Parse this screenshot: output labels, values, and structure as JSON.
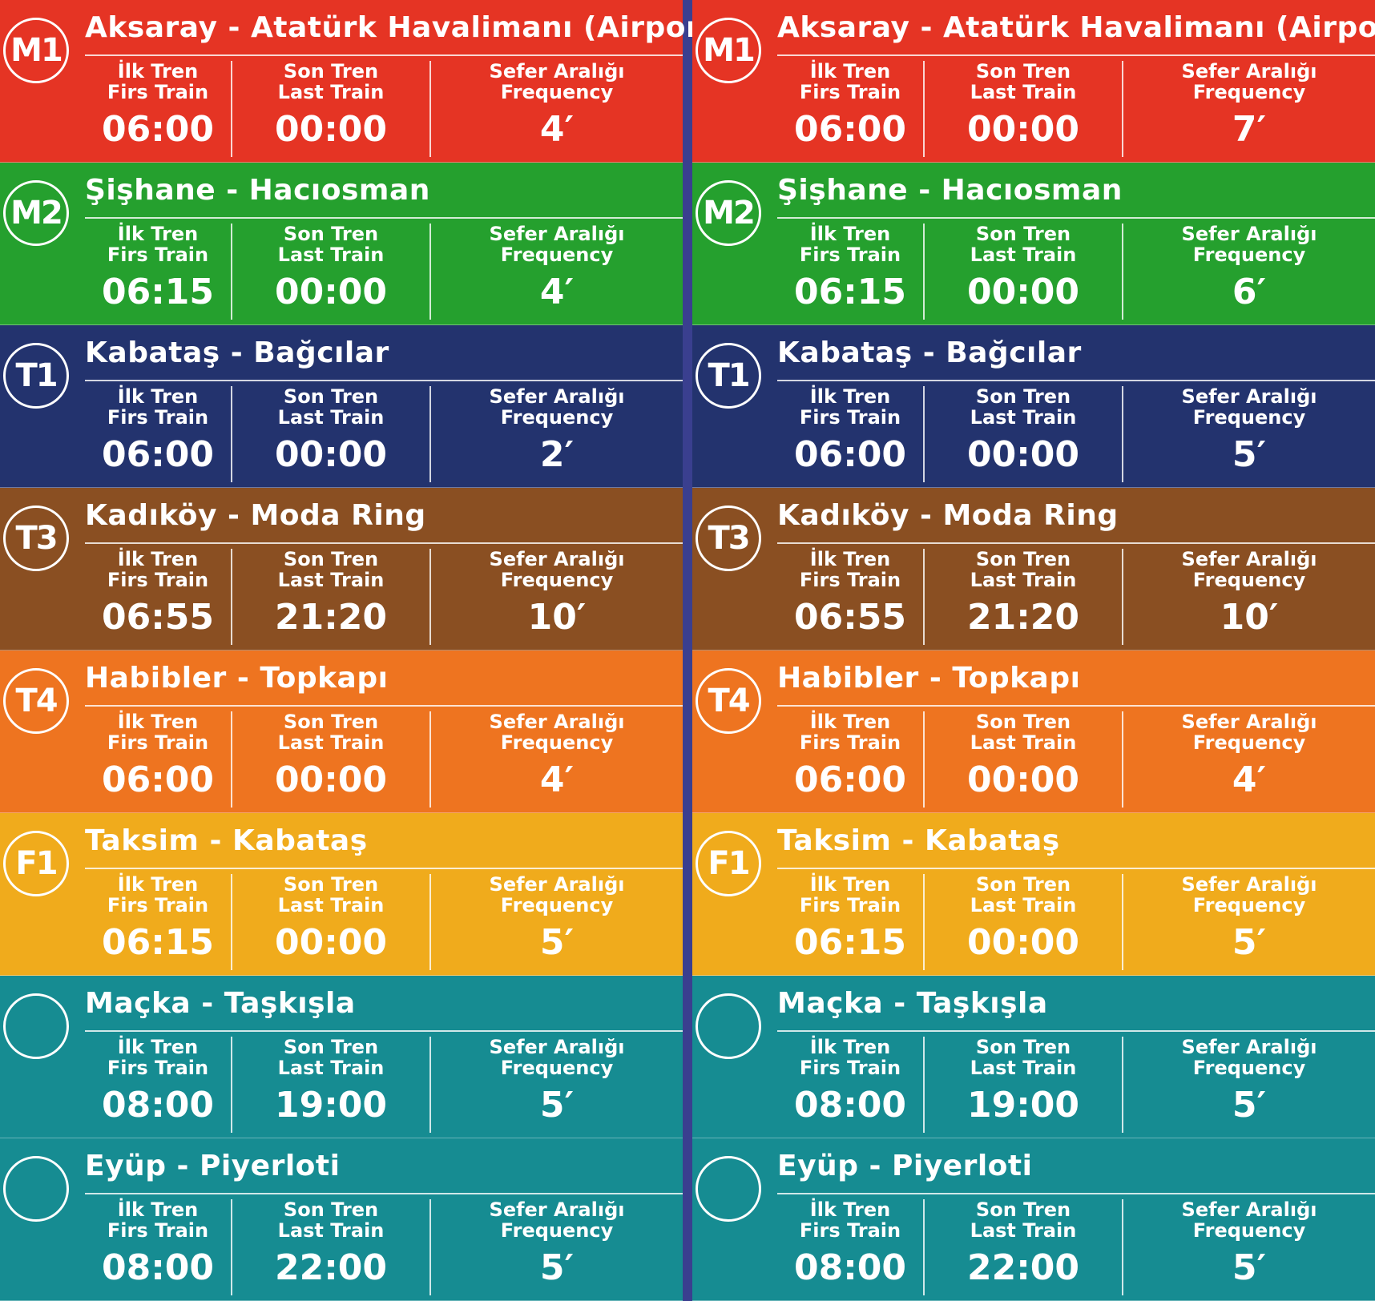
{
  "labels": {
    "first_tr": "İlk Tren",
    "first_en": "Firs Train",
    "last_tr": "Son Tren",
    "last_en": "Last Train",
    "freq_tr": "Sefer Aralığı",
    "freq_en": "Frequency"
  },
  "columns": [
    {
      "lines": [
        {
          "code": "M1",
          "name": "Aksaray - Atatürk Havalimanı (Airport)",
          "first": "06:00",
          "last": "00:00",
          "frequency": "4′",
          "color": "#e53424"
        },
        {
          "code": "M2",
          "name": "Şişhane - Hacıosman",
          "first": "06:15",
          "last": "00:00",
          "frequency": "4′",
          "color": "#25a02e"
        },
        {
          "code": "T1",
          "name": "Kabataş - Bağcılar",
          "first": "06:00",
          "last": "00:00",
          "frequency": "2′",
          "color": "#23336e"
        },
        {
          "code": "T3",
          "name": "Kadıköy - Moda Ring",
          "first": "06:55",
          "last": "21:20",
          "frequency": "10′",
          "color": "#8a4f22"
        },
        {
          "code": "T4",
          "name": "Habibler - Topkapı",
          "first": "06:00",
          "last": "00:00",
          "frequency": "4′",
          "color": "#ee7420"
        },
        {
          "code": "F1",
          "name": "Taksim - Kabataş",
          "first": "06:15",
          "last": "00:00",
          "frequency": "5′",
          "color": "#f0ab1c"
        },
        {
          "code": "",
          "name": "Maçka - Taşkışla",
          "first": "08:00",
          "last": "19:00",
          "frequency": "5′",
          "color": "#168c92"
        },
        {
          "code": "",
          "name": "Eyüp - Piyerloti",
          "first": "08:00",
          "last": "22:00",
          "frequency": "5′",
          "color": "#168c92"
        }
      ]
    },
    {
      "lines": [
        {
          "code": "M1",
          "name": "Aksaray - Atatürk Havalimanı (Airport)",
          "first": "06:00",
          "last": "00:00",
          "frequency": "7′",
          "color": "#e53424"
        },
        {
          "code": "M2",
          "name": "Şişhane - Hacıosman",
          "first": "06:15",
          "last": "00:00",
          "frequency": "6′",
          "color": "#25a02e"
        },
        {
          "code": "T1",
          "name": "Kabataş - Bağcılar",
          "first": "06:00",
          "last": "00:00",
          "frequency": "5′",
          "color": "#23336e"
        },
        {
          "code": "T3",
          "name": "Kadıköy - Moda Ring",
          "first": "06:55",
          "last": "21:20",
          "frequency": "10′",
          "color": "#8a4f22"
        },
        {
          "code": "T4",
          "name": "Habibler - Topkapı",
          "first": "06:00",
          "last": "00:00",
          "frequency": "4′",
          "color": "#ee7420"
        },
        {
          "code": "F1",
          "name": "Taksim - Kabataş",
          "first": "06:15",
          "last": "00:00",
          "frequency": "5′",
          "color": "#f0ab1c"
        },
        {
          "code": "",
          "name": "Maçka - Taşkışla",
          "first": "08:00",
          "last": "19:00",
          "frequency": "5′",
          "color": "#168c92"
        },
        {
          "code": "",
          "name": "Eyüp - Piyerloti",
          "first": "08:00",
          "last": "22:00",
          "frequency": "5′",
          "color": "#168c92"
        }
      ]
    }
  ]
}
